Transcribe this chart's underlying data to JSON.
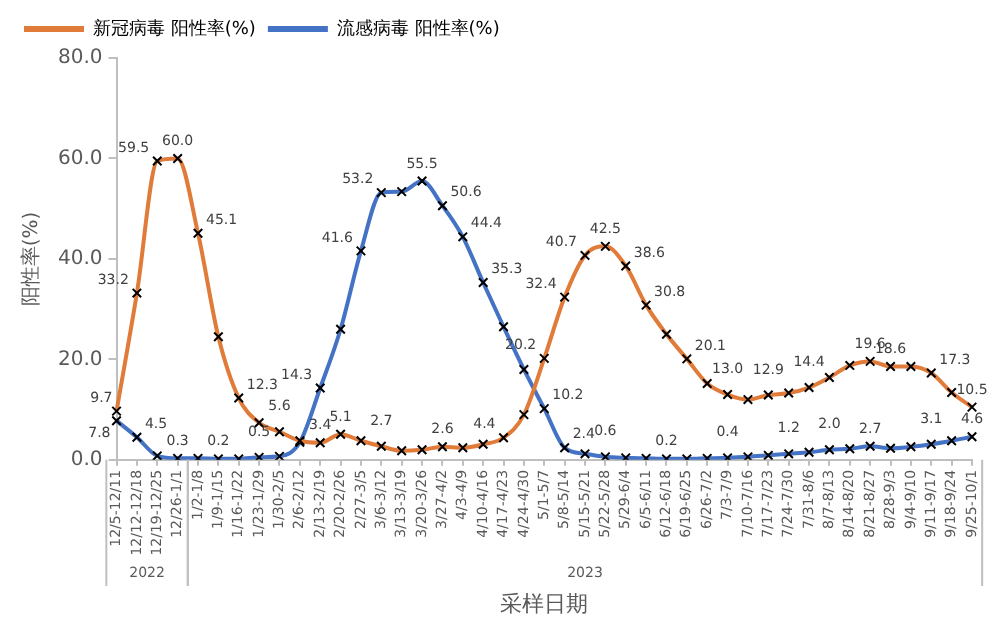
{
  "chart_data": {
    "type": "line",
    "xlabel": "采样日期",
    "ylabel": "阳性率(%)",
    "categories": [
      "12/5-12/11",
      "12/12-12/18",
      "12/19-12/25",
      "12/26-1/1",
      "1/2-1/8",
      "1/9-1/15",
      "1/16-1/22",
      "1/23-1/29",
      "1/30-2/5",
      "2/6-2/12",
      "2/13-2/19",
      "2/20-2/26",
      "2/27-3/5",
      "3/6-3/12",
      "3/13-3/19",
      "3/20-3/26",
      "3/27-4/2",
      "4/3-4/9",
      "4/10-4/16",
      "4/17-4/23",
      "4/24-4/30",
      "5/1-5/7",
      "5/8-5/14",
      "5/15-5/21",
      "5/22-5/28",
      "5/29-6/4",
      "6/5-6/11",
      "6/12-6/18",
      "6/19-6/25",
      "6/26-7/2",
      "7/3-7/9",
      "7/10-7/16",
      "7/17-7/23",
      "7/24-7/30",
      "7/31-8/6",
      "8/7-8/13",
      "8/14-8/20",
      "8/21-8/27",
      "8/28-9/3",
      "9/4-9/10",
      "9/11-9/17",
      "9/18-9/24",
      "9/25-10/1"
    ],
    "ylim": [
      0,
      80
    ],
    "yticks": [
      {
        "value": 0,
        "label": "0.0"
      },
      {
        "value": 20,
        "label": "20.0"
      },
      {
        "value": 40,
        "label": "40.0"
      },
      {
        "value": 60,
        "label": "60.0"
      },
      {
        "value": 80,
        "label": "80.0"
      }
    ],
    "series": [
      {
        "name": "新冠病毒 阳性率(%)",
        "color": "#e07b39",
        "values": [
          9.7,
          33.2,
          59.5,
          60.0,
          45.1,
          24.5,
          12.3,
          7.4,
          5.6,
          3.8,
          3.4,
          5.1,
          3.8,
          2.7,
          1.8,
          2.0,
          2.6,
          2.4,
          3.1,
          4.4,
          9.0,
          20.2,
          32.4,
          40.7,
          42.5,
          38.6,
          30.8,
          25.0,
          20.1,
          15.2,
          13.0,
          12.0,
          12.9,
          13.3,
          14.4,
          16.4,
          18.8,
          19.6,
          18.6,
          18.6,
          17.3,
          13.4,
          10.5
        ],
        "value_labels": [
          "9.7",
          "33.2",
          "59.5",
          "60.0",
          "45.1",
          null,
          "12.3",
          null,
          "5.6",
          null,
          "3.4",
          "5.1",
          null,
          "2.7",
          null,
          null,
          "2.6",
          null,
          null,
          "4.4",
          null,
          "20.2",
          "32.4",
          "40.7",
          "42.5",
          "38.6",
          "30.8",
          null,
          "20.1",
          null,
          "13.0",
          null,
          "12.9",
          null,
          "14.4",
          null,
          null,
          "19.6",
          "18.6",
          null,
          "17.3",
          null,
          "10.5"
        ]
      },
      {
        "name": "流感病毒 阳性率(%)",
        "color": "#4472c4",
        "values": [
          7.8,
          4.5,
          0.8,
          0.3,
          0.3,
          0.2,
          0.2,
          0.5,
          0.7,
          3.5,
          14.3,
          26.0,
          41.6,
          53.2,
          53.4,
          55.5,
          50.6,
          44.4,
          35.3,
          26.5,
          18.0,
          10.2,
          2.4,
          1.2,
          0.6,
          0.4,
          0.3,
          0.2,
          0.2,
          0.3,
          0.4,
          0.6,
          0.9,
          1.2,
          1.5,
          2.0,
          2.2,
          2.7,
          2.3,
          2.6,
          3.1,
          3.8,
          4.6
        ],
        "value_labels": [
          "7.8",
          "4.5",
          null,
          "0.3",
          null,
          "0.2",
          null,
          "0.5",
          null,
          null,
          "14.3",
          null,
          "41.6",
          "53.2",
          null,
          "55.5",
          "50.6",
          "44.4",
          "35.3",
          null,
          null,
          "10.2",
          "2.4",
          null,
          "0.6",
          null,
          null,
          "0.2",
          null,
          null,
          "0.4",
          null,
          null,
          "1.2",
          null,
          "2.0",
          null,
          "2.7",
          null,
          null,
          "3.1",
          null,
          "4.6"
        ]
      }
    ],
    "annotations": [
      "2022",
      "2023"
    ],
    "legend": "top",
    "marker": "cross",
    "grid": false
  }
}
